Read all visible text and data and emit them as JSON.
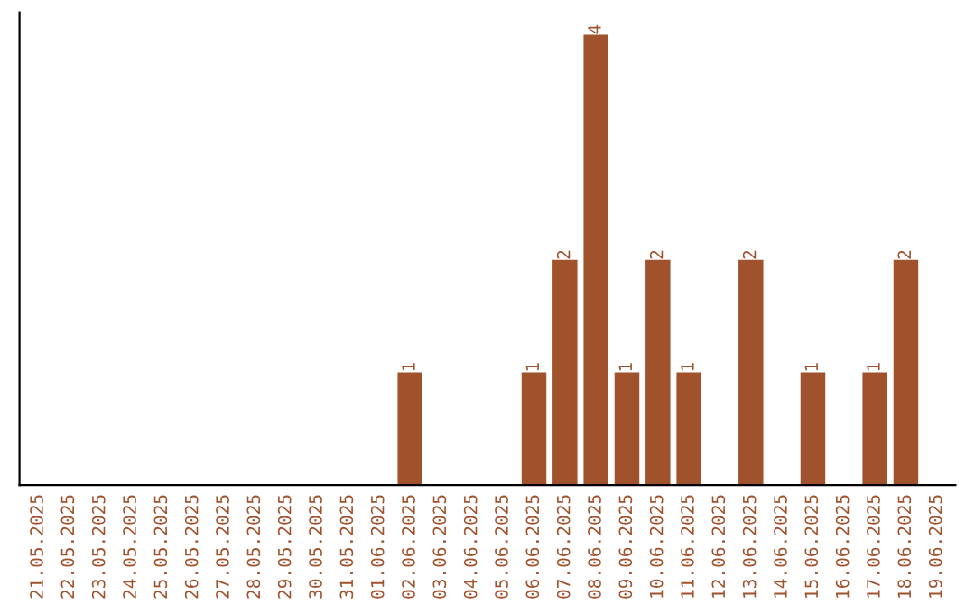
{
  "chart_data": {
    "type": "bar",
    "categories": [
      "21.05.2025",
      "22.05.2025",
      "23.05.2025",
      "24.05.2025",
      "25.05.2025",
      "26.05.2025",
      "27.05.2025",
      "28.05.2025",
      "29.05.2025",
      "30.05.2025",
      "31.05.2025",
      "01.06.2025",
      "02.06.2025",
      "03.06.2025",
      "04.06.2025",
      "05.06.2025",
      "06.06.2025",
      "07.06.2025",
      "08.06.2025",
      "09.06.2025",
      "10.06.2025",
      "11.06.2025",
      "12.06.2025",
      "13.06.2025",
      "14.06.2025",
      "15.06.2025",
      "16.06.2025",
      "17.06.2025",
      "18.06.2025",
      "19.06.2025"
    ],
    "values": [
      null,
      null,
      null,
      null,
      null,
      null,
      null,
      null,
      null,
      null,
      null,
      null,
      1,
      null,
      null,
      null,
      1,
      2,
      4,
      1,
      2,
      1,
      null,
      2,
      null,
      1,
      null,
      1,
      2,
      null
    ],
    "data_labels": true,
    "color": "#a0522d",
    "tick_labels": "x",
    "grid": false
  }
}
